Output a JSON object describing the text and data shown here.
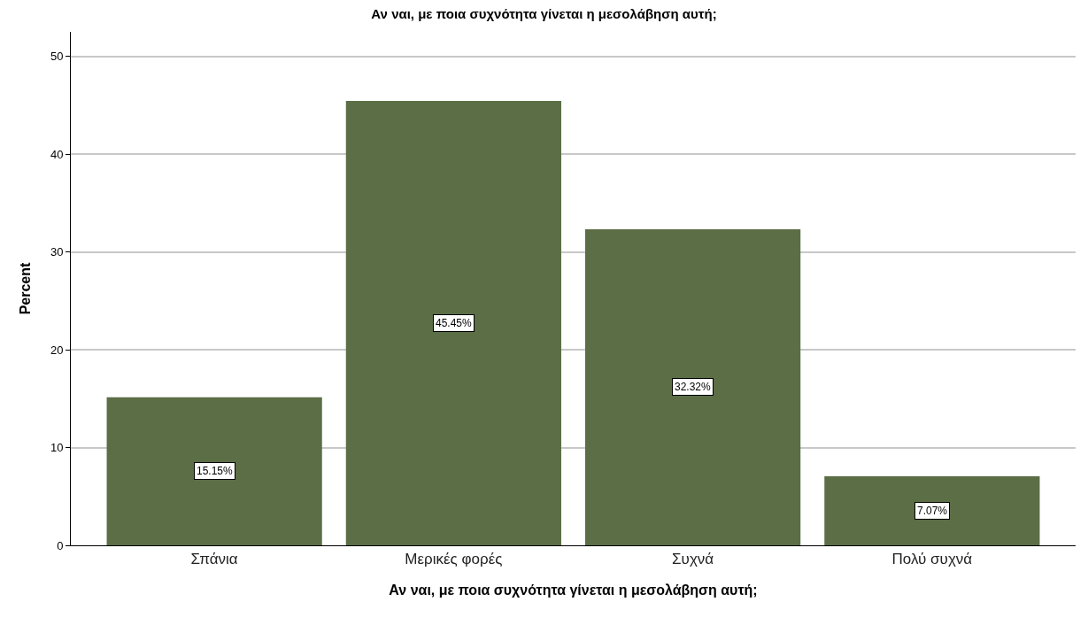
{
  "chart_data": {
    "type": "bar",
    "title": "Αν ναι, με ποια συχνότητα γίνεται η μεσολάβηση αυτή;",
    "xlabel": "Αν ναι, με ποια συχνότητα γίνεται η μεσολάβηση αυτή;",
    "ylabel": "Percent",
    "categories": [
      "Σπάνια",
      "Μερικές φορές",
      "Συχνά",
      "Πολύ συχνά"
    ],
    "values": [
      15.15,
      45.45,
      32.32,
      7.07
    ],
    "value_labels": [
      "15.15%",
      "45.45%",
      "32.32%",
      "7.07%"
    ],
    "color": "#5b6e46",
    "ylim": [
      0,
      52.5
    ],
    "yticks": [
      0,
      10,
      20,
      30,
      40,
      50
    ],
    "grid": "y",
    "legend": false
  }
}
